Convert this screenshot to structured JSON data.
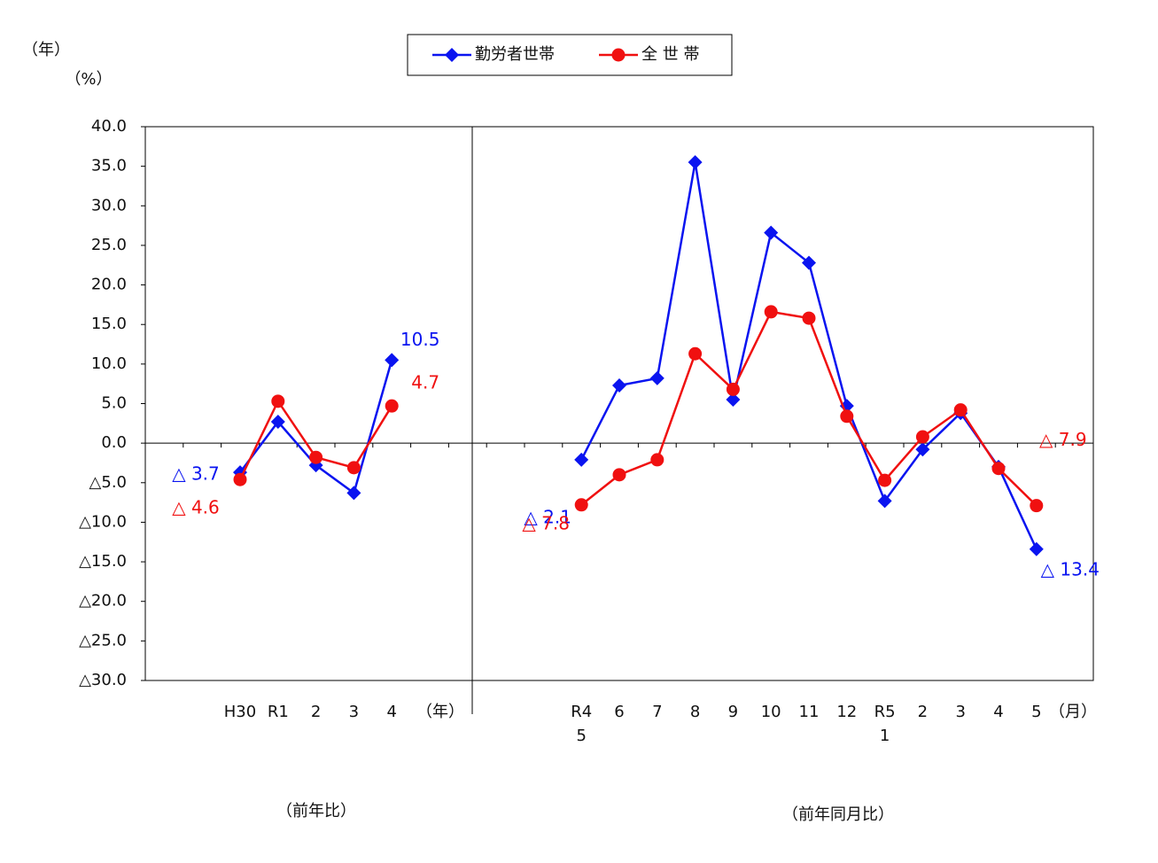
{
  "chart_data": [
    {
      "type": "line",
      "note": "（年）",
      "ylabel": "（%）",
      "ylim": [
        -30,
        40
      ],
      "yticks": [
        {
          "value": 40,
          "label": "40.0"
        },
        {
          "value": 35,
          "label": "35.0"
        },
        {
          "value": 30,
          "label": "30.0"
        },
        {
          "value": 25,
          "label": "25.0"
        },
        {
          "value": 20,
          "label": "20.0"
        },
        {
          "value": 15,
          "label": "15.0"
        },
        {
          "value": 10,
          "label": "10.0"
        },
        {
          "value": 5,
          "label": "5.0"
        },
        {
          "value": 0,
          "label": "0.0"
        },
        {
          "value": -5,
          "label": "△5.0"
        },
        {
          "value": -10,
          "label": "△10.0"
        },
        {
          "value": -15,
          "label": "△15.0"
        },
        {
          "value": -20,
          "label": "△20.0"
        },
        {
          "value": -25,
          "label": "△25.0"
        },
        {
          "value": -30,
          "label": "△30.0"
        }
      ],
      "categories": [
        "H30",
        "R1",
        "2",
        "3",
        "4"
      ],
      "unit": "（年）",
      "caption": "（前年比）",
      "series": [
        {
          "name": "勤労者世帯",
          "color": "#0a14f0",
          "marker": "diamond",
          "values": [
            -3.7,
            2.7,
            -2.8,
            -6.3,
            10.5
          ],
          "value_labels": [
            "△ 3.7",
            null,
            null,
            null,
            "10.5"
          ]
        },
        {
          "name": "全 世 帯",
          "color": "#f01010",
          "marker": "circle",
          "values": [
            -4.6,
            5.3,
            -1.8,
            -3.1,
            4.7
          ],
          "value_labels": [
            "△ 4.6",
            null,
            null,
            null,
            "4.7"
          ]
        }
      ]
    },
    {
      "type": "line",
      "categories": [
        "R4\n5",
        "6",
        "7",
        "8",
        "9",
        "10",
        "11",
        "12",
        "R5\n1",
        "2",
        "3",
        "4",
        "5"
      ],
      "unit": "（月）",
      "caption": "（前年同月比）",
      "series": [
        {
          "name": "勤労者世帯",
          "color": "#0a14f0",
          "marker": "diamond",
          "values": [
            -2.1,
            7.3,
            8.2,
            35.5,
            5.5,
            26.6,
            22.8,
            4.7,
            -7.3,
            -0.8,
            3.8,
            -3.0,
            -13.4
          ],
          "value_labels": [
            "△ 2.1",
            null,
            null,
            null,
            null,
            null,
            null,
            null,
            null,
            null,
            null,
            null,
            "△ 13.4"
          ]
        },
        {
          "name": "全 世 帯",
          "color": "#f01010",
          "marker": "circle",
          "values": [
            -7.8,
            -4.0,
            -2.1,
            11.3,
            6.8,
            16.6,
            15.8,
            3.4,
            -4.7,
            0.8,
            4.2,
            -3.2,
            -7.9
          ],
          "value_labels": [
            "△ 7.8",
            null,
            null,
            null,
            null,
            null,
            null,
            null,
            null,
            null,
            null,
            null,
            "△ 7.9"
          ]
        }
      ]
    }
  ]
}
